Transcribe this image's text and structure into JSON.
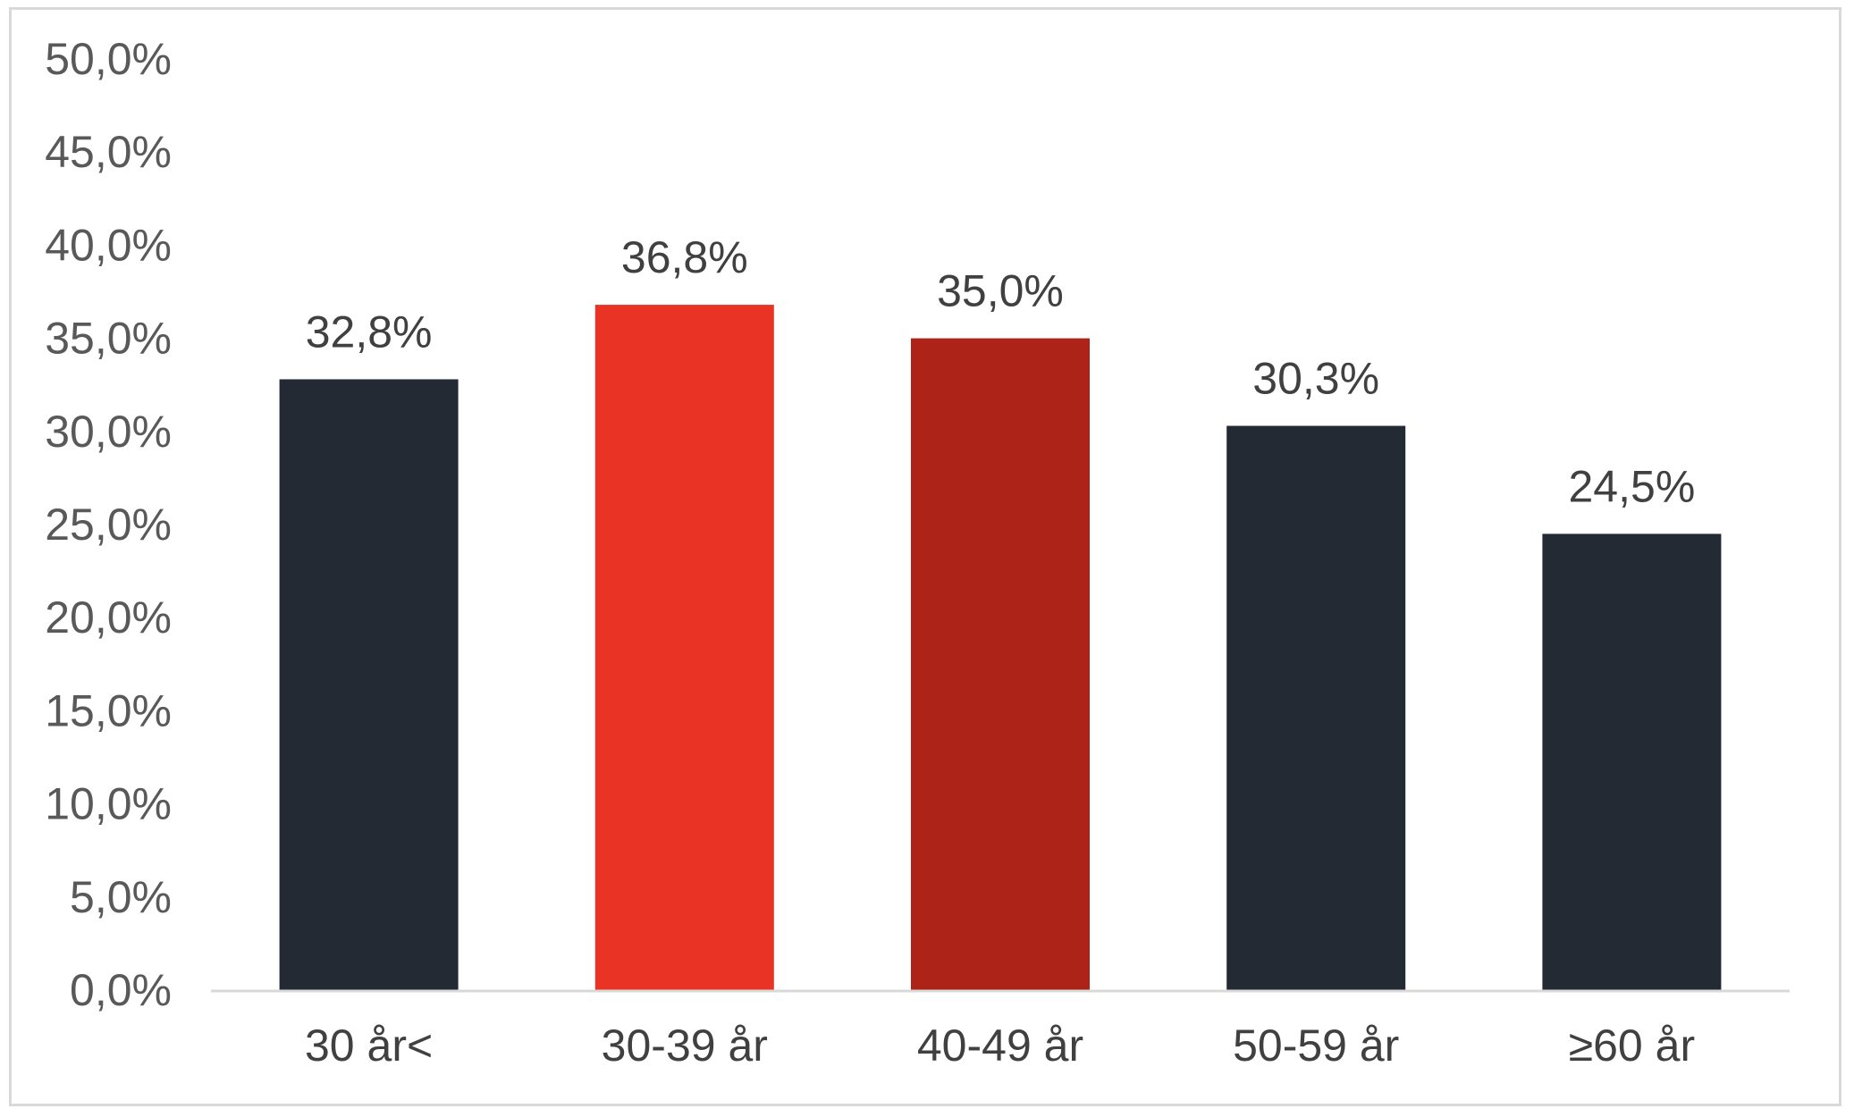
{
  "chart_data": {
    "type": "bar",
    "title": "",
    "xlabel": "",
    "ylabel": "",
    "categories": [
      "30 år<",
      "30-39 år",
      "40-49 år",
      "50-59 år",
      "≥60 år"
    ],
    "values": [
      32.8,
      36.8,
      35.0,
      30.3,
      24.5
    ],
    "value_labels": [
      "32,8%",
      "36,8%",
      "35,0%",
      "30,3%",
      "24,5%"
    ],
    "bar_colors": [
      "#232a33",
      "#e83325",
      "#ae2318",
      "#232a33",
      "#232a33"
    ],
    "ylim": [
      0,
      50
    ],
    "y_ticks": [
      0,
      5,
      10,
      15,
      20,
      25,
      30,
      35,
      40,
      45,
      50
    ],
    "y_tick_labels": [
      "0,0%",
      "5,0%",
      "10,0%",
      "15,0%",
      "20,0%",
      "25,0%",
      "30,0%",
      "35,0%",
      "40,0%",
      "45,0%",
      "50,0%"
    ],
    "grid": false,
    "legend": "none"
  }
}
